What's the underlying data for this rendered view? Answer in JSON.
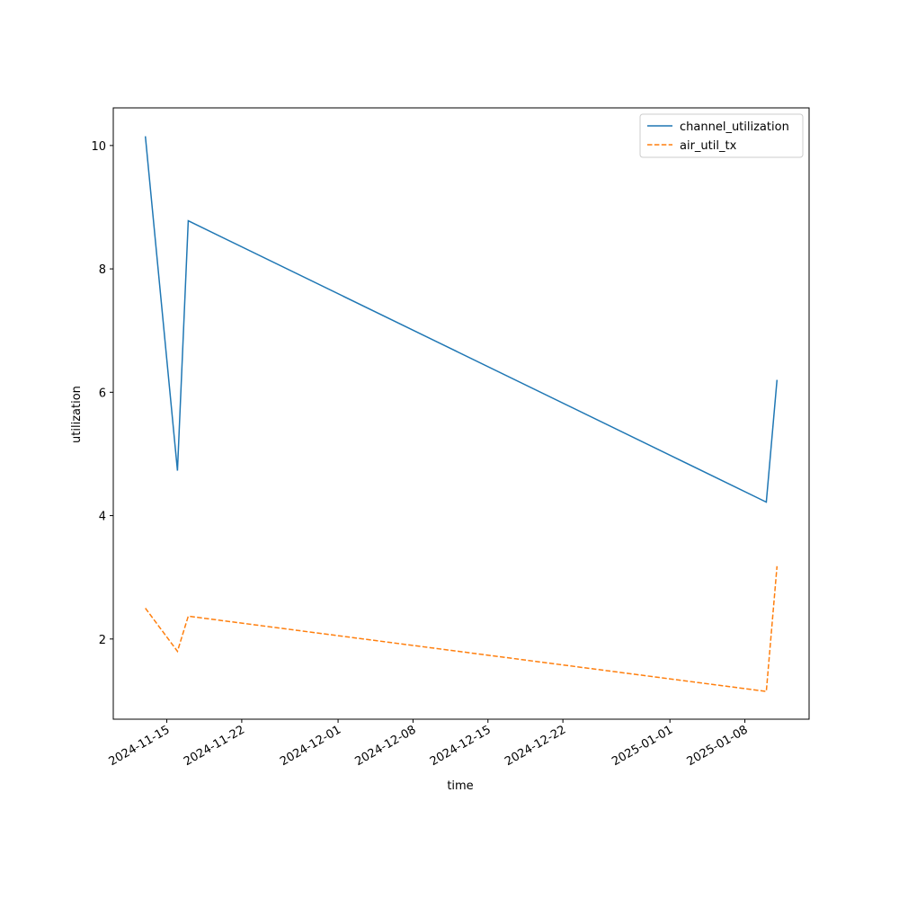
{
  "chart_data": {
    "type": "line",
    "xlabel": "time",
    "ylabel": "utilization",
    "x": [
      "2024-11-13",
      "2024-11-16",
      "2024-11-17",
      "2025-01-10",
      "2025-01-11"
    ],
    "series": [
      {
        "name": "channel_utilization",
        "color": "#1f77b4",
        "dash": "solid",
        "values": [
          10.15,
          4.73,
          8.78,
          4.22,
          6.2
        ]
      },
      {
        "name": "air_util_tx",
        "color": "#ff7f0e",
        "dash": "dashed",
        "values": [
          2.5,
          1.8,
          2.37,
          1.15,
          3.18
        ]
      }
    ],
    "xlim": [
      "2024-11-10",
      "2025-01-14"
    ],
    "xticks": [
      "2024-11-15",
      "2024-11-22",
      "2024-12-01",
      "2024-12-08",
      "2024-12-15",
      "2024-12-22",
      "2025-01-01",
      "2025-01-08"
    ],
    "ylim": [
      0.7,
      10.61
    ],
    "yticks": [
      2,
      4,
      6,
      8,
      10
    ],
    "grid": false,
    "legend": "upper right"
  }
}
